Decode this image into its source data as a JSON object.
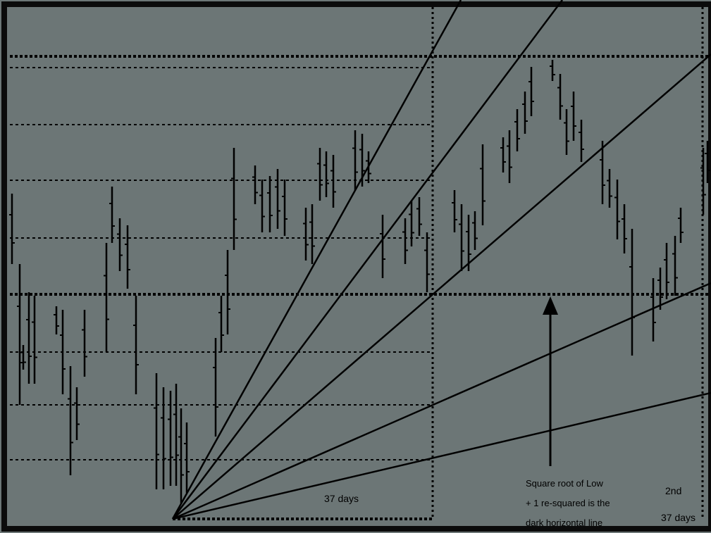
{
  "chart_data": {
    "type": "bar",
    "subtype": "ohlc-price-bars-with-fan-lines",
    "grid": "dotted horizontal levels",
    "annotations": {
      "first_period": "37 days",
      "second_period_line1": "2nd",
      "second_period_line2": "37 days",
      "note_line1": "Square root of Low",
      "note_line2": "+ 1 re-squared is the",
      "note_line3": "dark horizontal line"
    },
    "colors": {
      "background": "#6c7676",
      "ink": "#000000",
      "border": "#0b0b0b"
    }
  }
}
